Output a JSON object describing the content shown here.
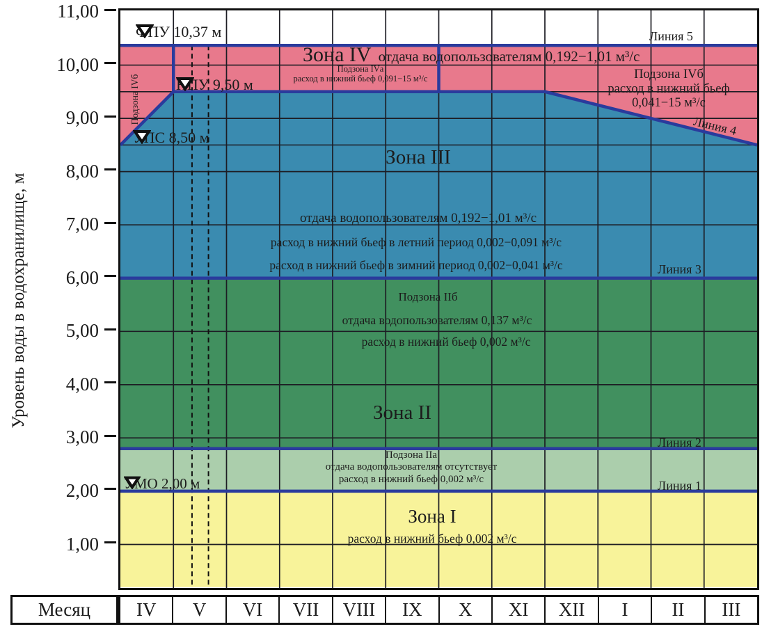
{
  "y_axis": {
    "title": "Уровень воды в водохранилище, м",
    "labels": [
      "11,00",
      "10,00",
      "9,00",
      "8,00",
      "7,00",
      "6,00",
      "5,00",
      "4,00",
      "3,00",
      "2,00",
      "1,00"
    ]
  },
  "x_axis": {
    "header": "Месяц",
    "months": [
      "IV",
      "V",
      "VI",
      "VII",
      "VIII",
      "IX",
      "X",
      "XI",
      "XII",
      "I",
      "II",
      "III"
    ]
  },
  "markers": {
    "fpu": "ФПУ 10,37 м",
    "npu": "НПУ 9,50 м",
    "ups": "УПС 8,50 м",
    "umo": "УМО 2,00 м"
  },
  "zone4": {
    "title": "Зона IV",
    "release": "отдача водопользователям 0,192−1,01 м³/с",
    "sub_a_name": "Подзона IVа",
    "sub_a_line": "расход в нижний бьеф  0,091−15 м³/с",
    "sub_b_vertical": "Подзона IVб",
    "sub_b_name": "Подзона IVб",
    "sub_b_line1": "расход в нижний бьеф",
    "sub_b_line2": "0,041−15 м³/с"
  },
  "zone3": {
    "title": "Зона III",
    "line1": "отдача водопользователям  0,192−1,01 м³/с",
    "line2": "расход в нижний бьеф в летний период  0,002−0,091 м³/с",
    "line3": "расход в нижний бьеф в зимний период  0,002−0,041 м³/с"
  },
  "zone2": {
    "title": "Зона II",
    "sub_b_name": "Подзона IIб",
    "sub_b_line1": "отдача водопользователям   0,137 м³/с",
    "sub_b_line2": "расход в нижний бьеф 0,002 м³/с",
    "sub_a_name": "Подзона IIа",
    "sub_a_line1": "отдача водопользователям отсутствует",
    "sub_a_line2": "расход в нижний бьеф 0,002 м³/с"
  },
  "zone1": {
    "title": "Зона I",
    "line1": "расход в нижний бьеф 0,002 м³/с"
  },
  "line_labels": {
    "l1": "Линия 1",
    "l2": "Линия 2",
    "l3": "Линия 3",
    "l4": "Линия 4",
    "l5": "Линия 5"
  },
  "colors": {
    "zone4_pink": "#e8798c",
    "zone3_blue": "#3a8bb0",
    "zone2_green": "#41905f",
    "zone2a_lightgreen": "#abceac",
    "zone1_yellow": "#f8f39a",
    "boundary_blue": "#2a3b9d",
    "grid": "#1d1d24"
  },
  "chart_data": {
    "type": "area",
    "x_categories": [
      "IV",
      "V",
      "VI",
      "VII",
      "VIII",
      "IX",
      "X",
      "XI",
      "XII",
      "I",
      "II",
      "III"
    ],
    "ylabel": "Уровень воды в водохранилище, м",
    "ylim": [
      0.2,
      11.0
    ],
    "y_ticks": [
      1,
      2,
      3,
      4,
      5,
      6,
      7,
      8,
      9,
      10,
      11
    ],
    "grid": true,
    "key_levels_m": {
      "ФПУ": 10.37,
      "НПУ": 9.5,
      "УПС": 8.5,
      "УМО": 2.0
    },
    "boundary_lines": [
      {
        "name": "Линия 5",
        "points_month_level": [
          [
            0,
            10.37
          ],
          [
            12,
            10.37
          ]
        ]
      },
      {
        "name": "Линия 4",
        "points_month_level": [
          [
            0,
            8.5
          ],
          [
            1,
            9.5
          ],
          [
            8,
            9.5
          ],
          [
            12,
            8.5
          ]
        ]
      },
      {
        "name": "Линия 3",
        "points_month_level": [
          [
            0,
            6.0
          ],
          [
            12,
            6.0
          ]
        ]
      },
      {
        "name": "Линия 2",
        "points_month_level": [
          [
            0,
            2.8
          ],
          [
            12,
            2.8
          ]
        ]
      },
      {
        "name": "Линия 1",
        "points_month_level": [
          [
            0,
            2.0
          ],
          [
            12,
            2.0
          ]
        ]
      }
    ],
    "zones": [
      {
        "name": "Зона IV",
        "upper": "Линия 5",
        "lower": "Линия 4",
        "color": "#e8798c",
        "release_m3s": "0,192−1,01",
        "downstream_m3s": {
          "Подзона IVа": "0,091−15",
          "Подзона IVб": "0,041−15"
        }
      },
      {
        "name": "Зона III",
        "upper": "Линия 4",
        "lower": "Линия 3",
        "color": "#3a8bb0",
        "release_m3s": "0,192−1,01",
        "downstream_summer_m3s": "0,002−0,091",
        "downstream_winter_m3s": "0,002−0,041"
      },
      {
        "name": "Зона II",
        "upper": "Линия 3",
        "lower": "Линия 2",
        "color": "#41905f",
        "release_m3s": "0,137",
        "downstream_m3s": "0,002"
      },
      {
        "name": "Подзона IIа",
        "upper": "Линия 2",
        "lower": "Линия 1",
        "color": "#abceac",
        "release_m3s": "отсутствует",
        "downstream_m3s": "0,002"
      },
      {
        "name": "Зона I",
        "upper": "Линия 1",
        "lower": "bottom",
        "color": "#f8f39a",
        "downstream_m3s": "0,002"
      }
    ],
    "extra_level_gridlines": [
      9.5,
      8.5
    ],
    "subzone_dividers_vertical": [
      {
        "month_x": 1,
        "from_level": 9.5,
        "to_level": 10.37
      },
      {
        "month_x": 6,
        "from_level": 9.5,
        "to_level": 10.37
      }
    ],
    "dashed_verticals_month_x": [
      1.35,
      1.66
    ]
  }
}
